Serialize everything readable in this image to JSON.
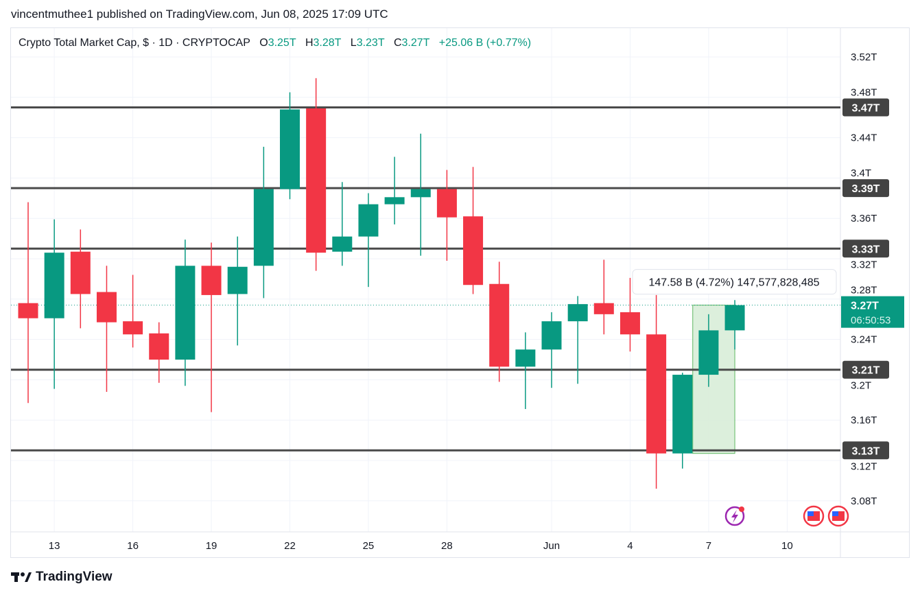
{
  "header": {
    "published": "vincentmuthee1 published on TradingView.com, Jun 08, 2025 17:09 UTC"
  },
  "legend": {
    "symbol": "Crypto Total Market Cap, $ · 1D · CRYPTOCAP",
    "o_label": "O",
    "o": "3.25T",
    "h_label": "H",
    "h": "3.28T",
    "l_label": "L",
    "l": "3.23T",
    "c_label": "C",
    "c": "3.27T",
    "change": "+25.06 B (+0.77%)"
  },
  "footer": {
    "brand": "TradingView"
  },
  "colors": {
    "up": "#089981",
    "down": "#F23645",
    "level_line": "#4a4a4a",
    "measure_fill": "#d9eed9"
  },
  "chart_data": {
    "type": "candlestick",
    "y_unit": "T",
    "ylim": [
      3.05,
      3.54
    ],
    "y_ticks": [
      "3.52T",
      "3.48T",
      "3.44T",
      "3.4T",
      "3.36T",
      "3.32T",
      "3.28T",
      "3.24T",
      "3.2T",
      "3.16T",
      "3.12T",
      "3.08T"
    ],
    "y_tick_values": [
      3.52,
      3.48,
      3.44,
      3.4,
      3.36,
      3.32,
      3.28,
      3.24,
      3.2,
      3.16,
      3.12,
      3.08
    ],
    "x_ticks": [
      {
        "label": "13",
        "date": "2025-05-13"
      },
      {
        "label": "16",
        "date": "2025-05-16"
      },
      {
        "label": "19",
        "date": "2025-05-19"
      },
      {
        "label": "22",
        "date": "2025-05-22"
      },
      {
        "label": "25",
        "date": "2025-05-25"
      },
      {
        "label": "28",
        "date": "2025-05-28"
      },
      {
        "label": "Jun",
        "date": "2025-06-01"
      },
      {
        "label": "4",
        "date": "2025-06-04"
      },
      {
        "label": "7",
        "date": "2025-06-07"
      },
      {
        "label": "10",
        "date": "2025-06-10"
      }
    ],
    "grid": true,
    "candles": [
      {
        "date": "2025-05-12",
        "o": 3.276,
        "h": 3.376,
        "l": 3.177,
        "c": 3.261
      },
      {
        "date": "2025-05-13",
        "o": 3.261,
        "h": 3.359,
        "l": 3.191,
        "c": 3.326
      },
      {
        "date": "2025-05-14",
        "o": 3.327,
        "h": 3.349,
        "l": 3.251,
        "c": 3.285
      },
      {
        "date": "2025-05-15",
        "o": 3.287,
        "h": 3.313,
        "l": 3.188,
        "c": 3.257
      },
      {
        "date": "2025-05-16",
        "o": 3.258,
        "h": 3.304,
        "l": 3.232,
        "c": 3.245
      },
      {
        "date": "2025-05-17",
        "o": 3.246,
        "h": 3.257,
        "l": 3.197,
        "c": 3.22
      },
      {
        "date": "2025-05-18",
        "o": 3.22,
        "h": 3.339,
        "l": 3.194,
        "c": 3.313
      },
      {
        "date": "2025-05-19",
        "o": 3.313,
        "h": 3.336,
        "l": 3.168,
        "c": 3.284
      },
      {
        "date": "2025-05-20",
        "o": 3.285,
        "h": 3.342,
        "l": 3.234,
        "c": 3.312
      },
      {
        "date": "2025-05-21",
        "o": 3.313,
        "h": 3.431,
        "l": 3.281,
        "c": 3.389
      },
      {
        "date": "2025-05-22",
        "o": 3.389,
        "h": 3.485,
        "l": 3.379,
        "c": 3.468
      },
      {
        "date": "2025-05-23",
        "o": 3.469,
        "h": 3.499,
        "l": 3.308,
        "c": 3.326
      },
      {
        "date": "2025-05-24",
        "o": 3.327,
        "h": 3.396,
        "l": 3.313,
        "c": 3.342
      },
      {
        "date": "2025-05-25",
        "o": 3.342,
        "h": 3.385,
        "l": 3.292,
        "c": 3.374
      },
      {
        "date": "2025-05-26",
        "o": 3.374,
        "h": 3.421,
        "l": 3.354,
        "c": 3.381
      },
      {
        "date": "2025-05-27",
        "o": 3.381,
        "h": 3.444,
        "l": 3.323,
        "c": 3.389
      },
      {
        "date": "2025-05-28",
        "o": 3.389,
        "h": 3.408,
        "l": 3.318,
        "c": 3.361
      },
      {
        "date": "2025-05-29",
        "o": 3.362,
        "h": 3.411,
        "l": 3.285,
        "c": 3.294
      },
      {
        "date": "2025-05-30",
        "o": 3.295,
        "h": 3.317,
        "l": 3.198,
        "c": 3.213
      },
      {
        "date": "2025-05-31",
        "o": 3.213,
        "h": 3.247,
        "l": 3.171,
        "c": 3.23
      },
      {
        "date": "2025-06-01",
        "o": 3.23,
        "h": 3.267,
        "l": 3.192,
        "c": 3.258
      },
      {
        "date": "2025-06-02",
        "o": 3.258,
        "h": 3.283,
        "l": 3.196,
        "c": 3.275
      },
      {
        "date": "2025-06-03",
        "o": 3.276,
        "h": 3.319,
        "l": 3.245,
        "c": 3.265
      },
      {
        "date": "2025-06-04",
        "o": 3.267,
        "h": 3.301,
        "l": 3.228,
        "c": 3.245
      },
      {
        "date": "2025-06-05",
        "o": 3.245,
        "h": 3.284,
        "l": 3.092,
        "c": 3.127
      },
      {
        "date": "2025-06-06",
        "o": 3.127,
        "h": 3.207,
        "l": 3.112,
        "c": 3.205
      },
      {
        "date": "2025-06-07",
        "o": 3.205,
        "h": 3.265,
        "l": 3.193,
        "c": 3.249
      },
      {
        "date": "2025-06-08",
        "o": 3.249,
        "h": 3.279,
        "l": 3.23,
        "c": 3.274
      }
    ],
    "levels": [
      {
        "value": 3.47,
        "label": "3.47T"
      },
      {
        "value": 3.39,
        "label": "3.39T"
      },
      {
        "value": 3.33,
        "label": "3.33T"
      },
      {
        "value": 3.21,
        "label": "3.21T"
      },
      {
        "value": 3.13,
        "label": "3.13T"
      }
    ],
    "last_price": {
      "value": 3.274,
      "label": "3.27T",
      "countdown": "06:50:53"
    },
    "measure": {
      "from_date": "2025-06-06",
      "to_date": "2025-06-08",
      "low": 3.127,
      "high": 3.274,
      "label": "147.58 B (4.72%) 147,577,828,485"
    }
  }
}
